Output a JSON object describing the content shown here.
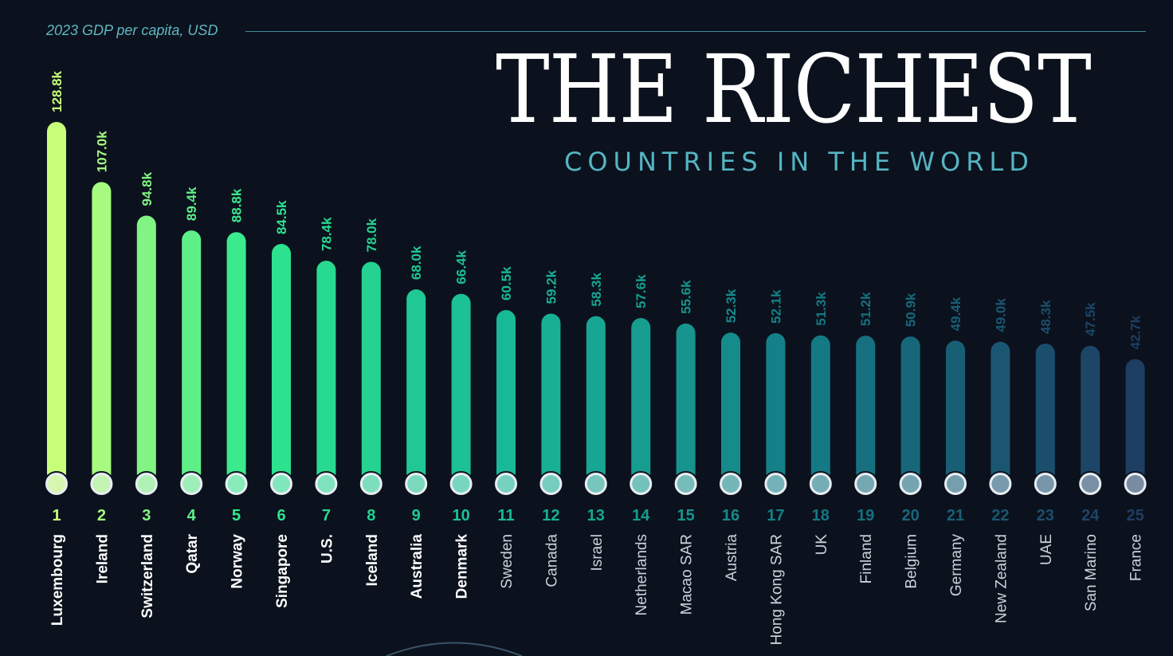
{
  "header": {
    "unit_label": "2023 GDP per capita, USD",
    "title": "THE RICHEST",
    "subtitle": "COUNTRIES IN THE WORLD"
  },
  "colors": {
    "background": "#0b121d",
    "bar_top": "#c8ff7a",
    "bar_bottom": "#1e3d63",
    "accent": "#5fb6c2"
  },
  "chart_data": {
    "type": "bar",
    "title": "The Richest Countries in the World",
    "ylabel": "2023 GDP per capita, USD",
    "categories": [
      "Luxembourg",
      "Ireland",
      "Switzerland",
      "Qatar",
      "Norway",
      "Singapore",
      "U.S.",
      "Iceland",
      "Australia",
      "Denmark",
      "Sweden",
      "Canada",
      "Israel",
      "Netherlands",
      "Macao SAR",
      "Austria",
      "Hong Kong SAR",
      "UK",
      "Finland",
      "Belgium",
      "Germany",
      "New Zealand",
      "UAE",
      "San Marino",
      "France"
    ],
    "ranks": [
      "1",
      "2",
      "3",
      "4",
      "5",
      "6",
      "7",
      "8",
      "9",
      "10",
      "11",
      "12",
      "13",
      "14",
      "15",
      "16",
      "17",
      "18",
      "19",
      "20",
      "21",
      "22",
      "23",
      "24",
      "25"
    ],
    "values": [
      128.8,
      107.0,
      94.8,
      89.4,
      88.8,
      84.5,
      78.4,
      78.0,
      68.0,
      66.4,
      60.5,
      59.2,
      58.3,
      57.6,
      55.6,
      52.3,
      52.1,
      51.3,
      51.2,
      50.9,
      49.4,
      49.0,
      48.3,
      47.5,
      42.7
    ],
    "value_labels": [
      "128.8k",
      "107.0k",
      "94.8k",
      "89.4k",
      "88.8k",
      "84.5k",
      "78.4k",
      "78.0k",
      "68.0k",
      "66.4k",
      "60.5k",
      "59.2k",
      "58.3k",
      "57.6k",
      "55.6k",
      "52.3k",
      "52.1k",
      "51.3k",
      "51.2k",
      "50.9k",
      "49.4k",
      "49.0k",
      "48.3k",
      "47.5k",
      "42.7k"
    ],
    "ylim": [
      0,
      130
    ]
  }
}
